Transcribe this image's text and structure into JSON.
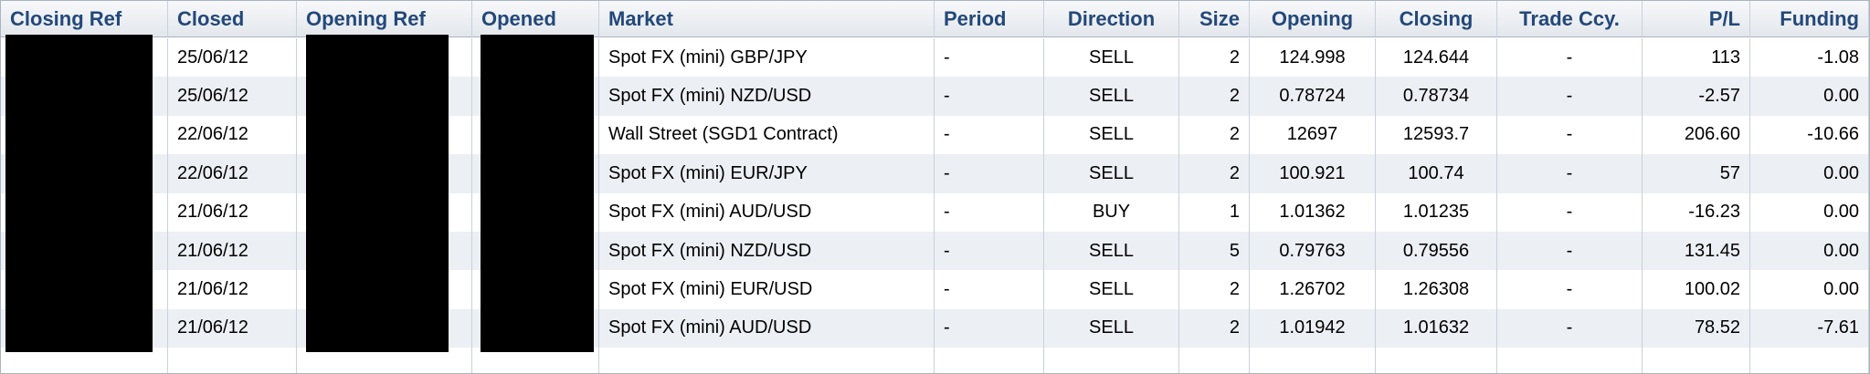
{
  "table": {
    "headers": [
      "Closing Ref",
      "Closed",
      "Opening Ref",
      "Opened",
      "Market",
      "Period",
      "Direction",
      "Size",
      "Opening",
      "Closing",
      "Trade Ccy.",
      "P/L",
      "Funding"
    ],
    "rows": [
      {
        "closed": "25/06/12",
        "market": "Spot FX (mini) GBP/JPY",
        "period": "-",
        "direction": "SELL",
        "size": "2",
        "opening": "124.998",
        "closing": "124.644",
        "trade_ccy": "-",
        "pl": "113",
        "funding": "-1.08"
      },
      {
        "closed": "25/06/12",
        "market": "Spot FX (mini) NZD/USD",
        "period": "-",
        "direction": "SELL",
        "size": "2",
        "opening": "0.78724",
        "closing": "0.78734",
        "trade_ccy": "-",
        "pl": "-2.57",
        "funding": "0.00"
      },
      {
        "closed": "22/06/12",
        "market": "Wall Street (SGD1 Contract)",
        "period": "-",
        "direction": "SELL",
        "size": "2",
        "opening": "12697",
        "closing": "12593.7",
        "trade_ccy": "-",
        "pl": "206.60",
        "funding": "-10.66"
      },
      {
        "closed": "22/06/12",
        "market": "Spot FX (mini) EUR/JPY",
        "period": "-",
        "direction": "SELL",
        "size": "2",
        "opening": "100.921",
        "closing": "100.74",
        "trade_ccy": "-",
        "pl": "57",
        "funding": "0.00"
      },
      {
        "closed": "21/06/12",
        "market": "Spot FX (mini) AUD/USD",
        "period": "-",
        "direction": "BUY",
        "size": "1",
        "opening": "1.01362",
        "closing": "1.01235",
        "trade_ccy": "-",
        "pl": "-16.23",
        "funding": "0.00"
      },
      {
        "closed": "21/06/12",
        "market": "Spot FX (mini) NZD/USD",
        "period": "-",
        "direction": "SELL",
        "size": "5",
        "opening": "0.79763",
        "closing": "0.79556",
        "trade_ccy": "-",
        "pl": "131.45",
        "funding": "0.00"
      },
      {
        "closed": "21/06/12",
        "market": "Spot FX (mini) EUR/USD",
        "period": "-",
        "direction": "SELL",
        "size": "2",
        "opening": "1.26702",
        "closing": "1.26308",
        "trade_ccy": "-",
        "pl": "100.02",
        "funding": "0.00"
      },
      {
        "closed": "21/06/12",
        "market": "Spot FX (mini) AUD/USD",
        "period": "-",
        "direction": "SELL",
        "size": "2",
        "opening": "1.01942",
        "closing": "1.01632",
        "trade_ccy": "-",
        "pl": "78.52",
        "funding": "-7.61"
      }
    ]
  }
}
